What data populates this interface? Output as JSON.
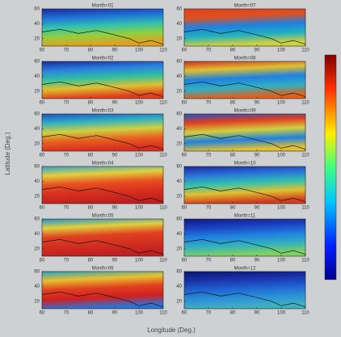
{
  "figure": {
    "xlabel": "Longitude (Deg.)",
    "ylabel": "Latitude (Deg.)"
  },
  "chart_data": [
    {
      "type": "map",
      "title": "Month=01",
      "xlim": [
        60,
        110
      ],
      "ylim": [
        10,
        60
      ],
      "xticks": [
        60,
        70,
        80,
        90,
        100,
        110
      ],
      "yticks": [
        20,
        40,
        60
      ]
    },
    {
      "type": "map",
      "title": "Month=02",
      "xlim": [
        60,
        110
      ],
      "ylim": [
        10,
        60
      ],
      "xticks": [
        60,
        70,
        80,
        90,
        100,
        110
      ],
      "yticks": [
        20,
        40,
        60
      ]
    },
    {
      "type": "map",
      "title": "Month=03",
      "xlim": [
        60,
        110
      ],
      "ylim": [
        10,
        60
      ],
      "xticks": [
        60,
        70,
        80,
        90,
        100,
        110
      ],
      "yticks": [
        20,
        40,
        60
      ]
    },
    {
      "type": "map",
      "title": "Month=04",
      "xlim": [
        60,
        110
      ],
      "ylim": [
        10,
        60
      ],
      "xticks": [
        60,
        70,
        80,
        90,
        100,
        110
      ],
      "yticks": [
        20,
        40,
        60
      ]
    },
    {
      "type": "map",
      "title": "Month=05",
      "xlim": [
        60,
        110
      ],
      "ylim": [
        10,
        60
      ],
      "xticks": [
        60,
        70,
        80,
        90,
        100,
        110
      ],
      "yticks": [
        20,
        40,
        60
      ]
    },
    {
      "type": "map",
      "title": "Month=06",
      "xlim": [
        60,
        110
      ],
      "ylim": [
        10,
        60
      ],
      "xticks": [
        60,
        70,
        80,
        90,
        100,
        110
      ],
      "yticks": [
        20,
        40,
        60
      ]
    },
    {
      "type": "map",
      "title": "Month=07",
      "xlim": [
        60,
        110
      ],
      "ylim": [
        10,
        60
      ],
      "xticks": [
        60,
        70,
        80,
        90,
        100,
        110
      ],
      "yticks": [
        20,
        40,
        60
      ]
    },
    {
      "type": "map",
      "title": "Month=08",
      "xlim": [
        60,
        110
      ],
      "ylim": [
        10,
        60
      ],
      "xticks": [
        60,
        70,
        80,
        90,
        100,
        110
      ],
      "yticks": [
        20,
        40,
        60
      ]
    },
    {
      "type": "map",
      "title": "Month=09",
      "xlim": [
        60,
        110
      ],
      "ylim": [
        10,
        60
      ],
      "xticks": [
        60,
        70,
        80,
        90,
        100,
        110
      ],
      "yticks": [
        20,
        40,
        60
      ]
    },
    {
      "type": "map",
      "title": "Month=10",
      "xlim": [
        60,
        110
      ],
      "ylim": [
        10,
        60
      ],
      "xticks": [
        60,
        70,
        80,
        90,
        100,
        110
      ],
      "yticks": [
        20,
        40,
        60
      ]
    },
    {
      "type": "map",
      "title": "Month=11",
      "xlim": [
        60,
        110
      ],
      "ylim": [
        10,
        60
      ],
      "xticks": [
        60,
        70,
        80,
        90,
        100,
        110
      ],
      "yticks": [
        20,
        40,
        60
      ]
    },
    {
      "type": "map",
      "title": "Month=12",
      "xlim": [
        60,
        110
      ],
      "ylim": [
        10,
        60
      ],
      "xticks": [
        60,
        70,
        80,
        90,
        100,
        110
      ],
      "yticks": [
        20,
        40,
        60
      ]
    }
  ]
}
